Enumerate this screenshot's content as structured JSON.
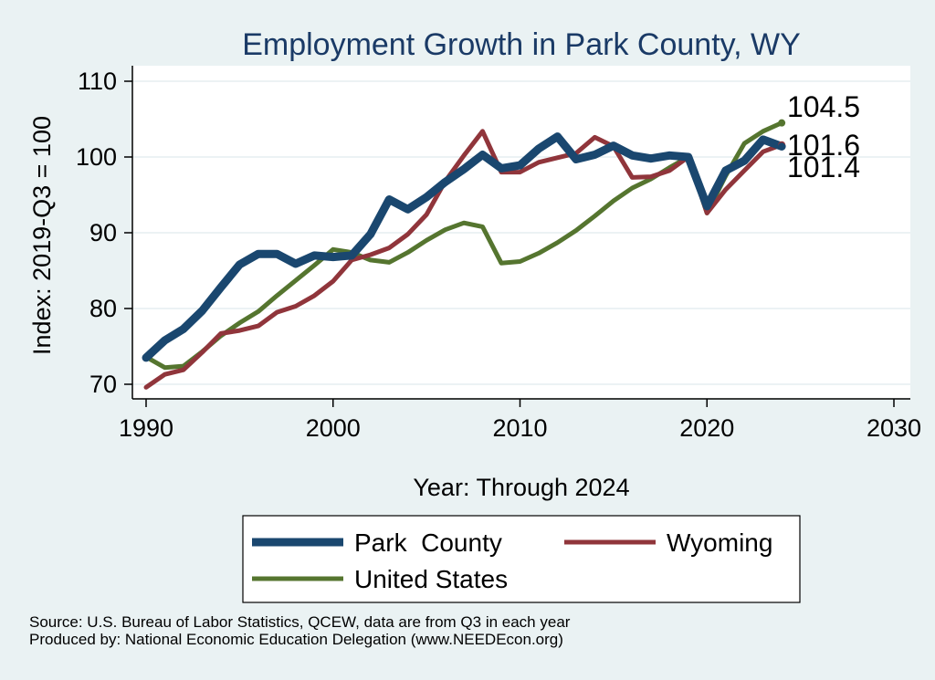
{
  "chart_data": {
    "type": "line",
    "title": "Employment Growth in Park County, WY",
    "xlabel": "Year: Through 2024",
    "ylabel": "Index: 2019-Q3 = 100",
    "xlim": [
      1990,
      2030
    ],
    "ylim": [
      68,
      112
    ],
    "x_ticks": [
      "1990",
      "2000",
      "2010",
      "2020",
      "2030"
    ],
    "y_ticks": [
      "70",
      "80",
      "90",
      "100",
      "110"
    ],
    "grid": true,
    "legend_position": "bottom",
    "x": [
      1990,
      1991,
      1992,
      1993,
      1994,
      1995,
      1996,
      1997,
      1998,
      1999,
      2000,
      2001,
      2002,
      2003,
      2004,
      2005,
      2006,
      2007,
      2008,
      2009,
      2010,
      2011,
      2012,
      2013,
      2014,
      2015,
      2016,
      2017,
      2018,
      2019,
      2020,
      2021,
      2022,
      2023,
      2024
    ],
    "series": [
      {
        "name": "Park  County",
        "color": "#1a476f",
        "values": [
          73.5,
          75.8,
          77.3,
          79.7,
          82.8,
          85.8,
          87.2,
          87.2,
          85.9,
          87.0,
          86.8,
          87.0,
          89.8,
          94.4,
          93.1,
          94.7,
          96.7,
          98.4,
          100.3,
          98.5,
          98.9,
          101.1,
          102.7,
          99.7,
          100.3,
          101.5,
          100.2,
          99.8,
          100.2,
          100.0,
          93.5,
          98.2,
          99.5,
          102.3,
          101.4
        ],
        "end_label": "101.4"
      },
      {
        "name": "Wyoming",
        "color": "#90353b",
        "values": [
          69.6,
          71.3,
          71.9,
          74.2,
          76.7,
          77.1,
          77.7,
          79.5,
          80.3,
          81.7,
          83.6,
          86.4,
          87.1,
          88.0,
          89.8,
          92.4,
          96.8,
          100.2,
          103.4,
          98.0,
          98.0,
          99.3,
          99.9,
          100.5,
          102.6,
          101.4,
          97.3,
          97.4,
          98.2,
          100.0,
          92.6,
          95.7,
          98.2,
          100.7,
          101.6
        ],
        "end_label": "101.6"
      },
      {
        "name": "United States",
        "color": "#55752f",
        "values": [
          73.6,
          72.2,
          72.4,
          74.3,
          76.4,
          78.1,
          79.6,
          81.7,
          83.7,
          85.7,
          87.8,
          87.4,
          86.4,
          86.1,
          87.4,
          89.0,
          90.4,
          91.3,
          90.8,
          86.0,
          86.2,
          87.3,
          88.7,
          90.3,
          92.2,
          94.2,
          95.9,
          97.1,
          98.6,
          100.0,
          92.6,
          97.5,
          101.8,
          103.4,
          104.5
        ],
        "end_label": "104.5"
      }
    ]
  },
  "notes": {
    "source": "Source: U.S. Bureau of Labor Statistics, QCEW, data are from Q3 in each year",
    "produced_by": "Produced by: National Economic Education Delegation (www.NEEDEcon.org)"
  }
}
